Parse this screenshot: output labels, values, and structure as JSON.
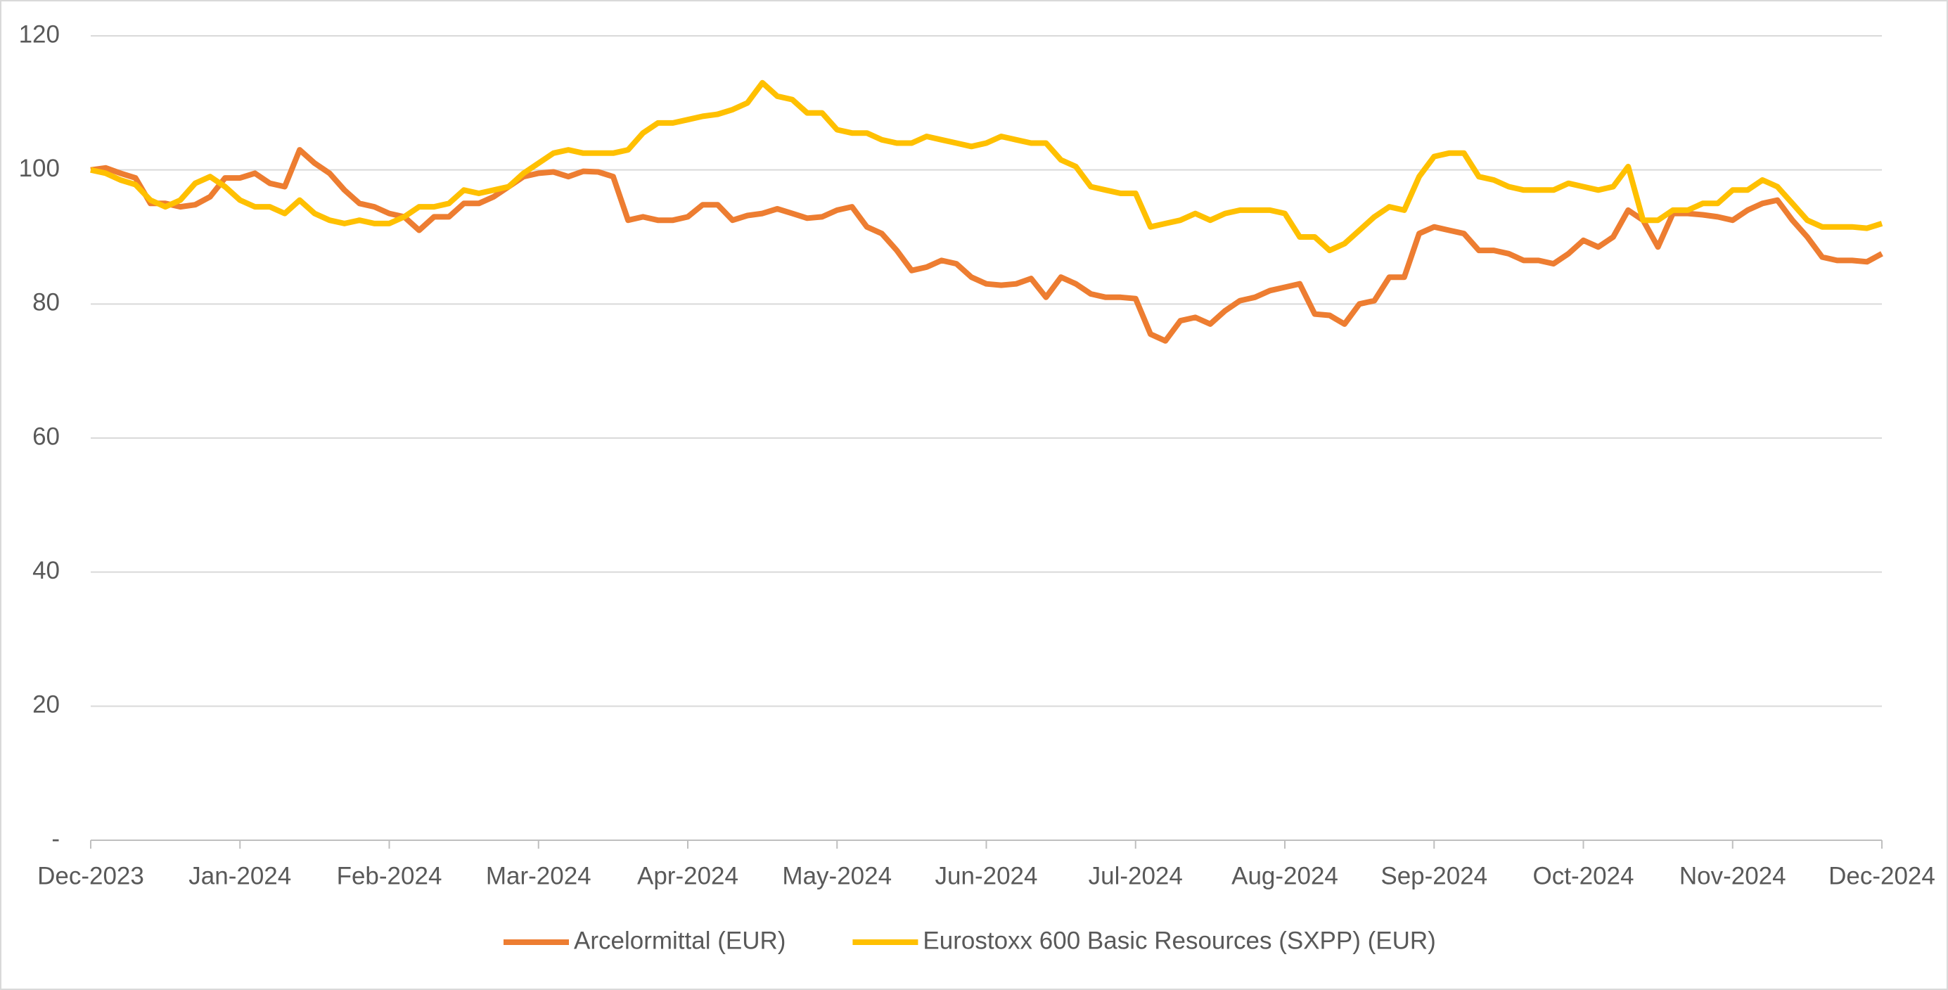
{
  "chart_data": {
    "type": "line",
    "categories": [
      "Dec-2023",
      null,
      null,
      null,
      null,
      null,
      null,
      null,
      null,
      null,
      "Jan-2024",
      null,
      null,
      null,
      null,
      null,
      null,
      null,
      null,
      null,
      "Feb-2024",
      null,
      null,
      null,
      null,
      null,
      null,
      null,
      null,
      null,
      "Mar-2024",
      null,
      null,
      null,
      null,
      null,
      null,
      null,
      null,
      null,
      "Apr-2024",
      null,
      null,
      null,
      null,
      null,
      null,
      null,
      null,
      null,
      "May-2024",
      null,
      null,
      null,
      null,
      null,
      null,
      null,
      null,
      null,
      "Jun-2024",
      null,
      null,
      null,
      null,
      null,
      null,
      null,
      null,
      null,
      "Jul-2024",
      null,
      null,
      null,
      null,
      null,
      null,
      null,
      null,
      null,
      "Aug-2024",
      null,
      null,
      null,
      null,
      null,
      null,
      null,
      null,
      null,
      "Sep-2024",
      null,
      null,
      null,
      null,
      null,
      null,
      null,
      null,
      null,
      "Oct-2024",
      null,
      null,
      null,
      null,
      null,
      null,
      null,
      null,
      null,
      "Nov-2024",
      null,
      null,
      null,
      null,
      null,
      null,
      null,
      null,
      null,
      "Dec-2024"
    ],
    "series": [
      {
        "name": "Arcelormittal (EUR)",
        "color": "#ed7d31",
        "values": [
          100,
          100.3,
          99.5,
          98.8,
          95,
          95,
          94.5,
          94.8,
          96,
          98.8,
          98.8,
          99.5,
          98,
          97.5,
          103,
          101,
          99.5,
          97,
          95,
          94.5,
          93.5,
          93,
          91,
          93,
          93,
          95,
          95,
          96,
          97.5,
          99,
          99.5,
          99.7,
          99,
          99.8,
          99.7,
          99,
          92.5,
          93,
          92.5,
          92.5,
          93,
          94.8,
          94.8,
          92.5,
          93.2,
          93.5,
          94.2,
          93.5,
          92.8,
          93,
          94,
          94.5,
          91.5,
          90.5,
          88,
          85,
          85.5,
          86.5,
          86,
          84,
          83,
          82.8,
          83,
          83.8,
          81,
          84,
          83,
          81.5,
          81,
          81,
          80.8,
          75.5,
          74.5,
          77.5,
          78,
          77,
          79,
          80.5,
          81,
          82,
          82.5,
          83,
          78.5,
          78.3,
          77,
          80,
          80.5,
          84,
          84,
          90.5,
          91.5,
          91,
          90.5,
          88,
          88,
          87.5,
          86.5,
          86.5,
          86,
          87.5,
          89.5,
          88.5,
          90,
          94,
          92.5,
          88.5,
          93.5,
          93.5,
          93.3,
          93,
          92.5,
          94,
          95,
          95.5,
          92.5,
          90,
          87,
          86.5,
          86.5,
          86.3,
          87.5
        ]
      },
      {
        "name": "Eurostoxx 600 Basic Resources (SXPP) (EUR)",
        "color": "#ffc000",
        "values": [
          100,
          99.5,
          98.5,
          97.8,
          95.5,
          94.5,
          95.5,
          98,
          99,
          97.5,
          95.5,
          94.5,
          94.5,
          93.5,
          95.5,
          93.5,
          92.5,
          92,
          92.5,
          92,
          92,
          93,
          94.5,
          94.5,
          95,
          97,
          96.5,
          97,
          97.5,
          99.5,
          101,
          102.5,
          103,
          102.5,
          102.5,
          102.5,
          103,
          105.5,
          107,
          107,
          107.5,
          108,
          108.3,
          109,
          110,
          113,
          111,
          110.5,
          108.5,
          108.5,
          106,
          105.5,
          105.5,
          104.5,
          104,
          104,
          105,
          104.5,
          104,
          103.5,
          104,
          105,
          104.5,
          104,
          104,
          101.5,
          100.5,
          97.5,
          97,
          96.5,
          96.5,
          91.5,
          92,
          92.5,
          93.5,
          92.5,
          93.5,
          94,
          94,
          94,
          93.5,
          90,
          90,
          88,
          89,
          91,
          93,
          94.5,
          94,
          99,
          102,
          102.5,
          102.5,
          99,
          98.5,
          97.5,
          97,
          97,
          97,
          98,
          97.5,
          97,
          97.5,
          100.5,
          92.5,
          92.5,
          94,
          94,
          95,
          95,
          97,
          97,
          98.5,
          97.5,
          95,
          92.5,
          91.5,
          91.5,
          91.5,
          91.3,
          92
        ]
      }
    ],
    "ylim": [
      0,
      120
    ],
    "yticks": [
      {
        "value": 0,
        "label": "-"
      },
      20,
      40,
      60,
      80,
      100,
      120
    ],
    "grid": true,
    "legend": "bottom"
  }
}
